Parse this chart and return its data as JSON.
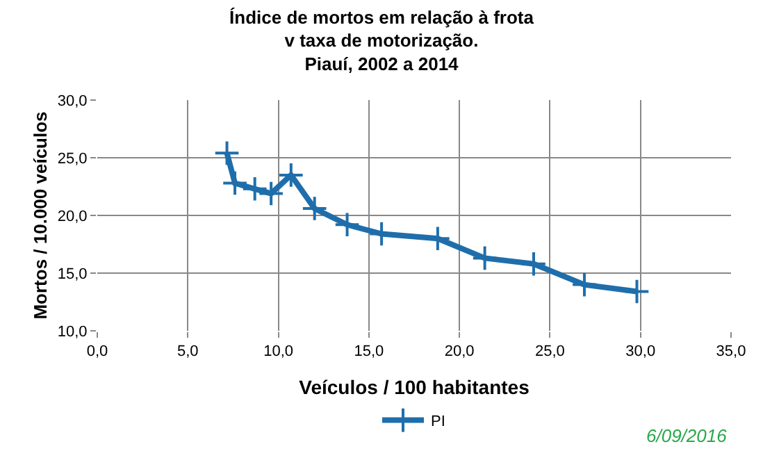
{
  "chart_data": {
    "type": "line",
    "title": "Índice de mortos em relação à frota\nv taxa de motorização.\nPiauí, 2002 a 2014",
    "xlabel": "Veículos / 100 habitantes",
    "ylabel": "Mortos / 10.000 veículos",
    "x": [
      7.16,
      7.6,
      8.7,
      9.6,
      10.7,
      12.0,
      13.8,
      15.7,
      18.8,
      21.4,
      24.1,
      26.9,
      29.8
    ],
    "series": [
      {
        "name": "PI",
        "color": "#1f6eab",
        "values": [
          25.4,
          22.8,
          22.3,
          21.9,
          23.5,
          20.6,
          19.2,
          18.4,
          18.0,
          16.3,
          15.8,
          14.0,
          13.4
        ]
      }
    ],
    "xlim": [
      0,
      35
    ],
    "xticks": [
      {
        "value": 0,
        "label": "0,0"
      },
      {
        "value": 5,
        "label": "5,0"
      },
      {
        "value": 10,
        "label": "10,0"
      },
      {
        "value": 15,
        "label": "15,0"
      },
      {
        "value": 20,
        "label": "20,0"
      },
      {
        "value": 25,
        "label": "25,0"
      },
      {
        "value": 30,
        "label": "30,0"
      },
      {
        "value": 35,
        "label": "35,0"
      }
    ],
    "ylim": [
      10,
      30
    ],
    "yticks": [
      {
        "value": 10,
        "label": "10,0"
      },
      {
        "value": 15,
        "label": "15,0"
      },
      {
        "value": 20,
        "label": "20,0"
      },
      {
        "value": 25,
        "label": "25,0"
      },
      {
        "value": 30,
        "label": "30,0"
      }
    ],
    "grid": true,
    "legend": "bottom",
    "marker": "cross",
    "line_style": "solid",
    "annotations": [
      "6/09/2016"
    ]
  }
}
